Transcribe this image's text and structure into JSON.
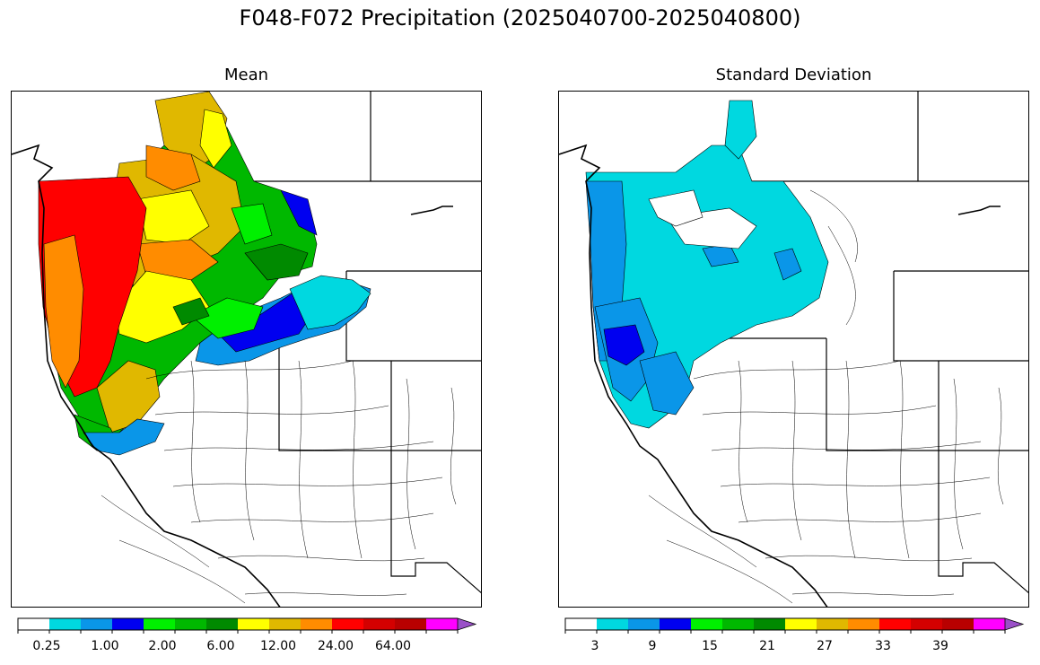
{
  "title": "F048-F072 Precipitation (2025040700-2025040800)",
  "panels": {
    "mean": {
      "title": "Mean",
      "colorbar": {
        "colors": [
          "#ffffff",
          "#00d8e0",
          "#0a96e8",
          "#0000f0",
          "#00f000",
          "#00b800",
          "#008a00",
          "#ffff00",
          "#e0b800",
          "#ff8c00",
          "#ff0000",
          "#d40000",
          "#b80000",
          "#ff00ff",
          "#9a50c8"
        ],
        "tick_labels": [
          "0.25",
          "1.00",
          "2.00",
          "6.00",
          "12.00",
          "24.00",
          "64.00"
        ]
      }
    },
    "stddev": {
      "title": "Standard Deviation",
      "colorbar": {
        "colors": [
          "#ffffff",
          "#00d8e0",
          "#0a96e8",
          "#0000f0",
          "#00f000",
          "#00b800",
          "#008a00",
          "#ffff00",
          "#e0b800",
          "#ff8c00",
          "#ff0000",
          "#d40000",
          "#b80000",
          "#ff00ff",
          "#9a50c8"
        ],
        "tick_labels": [
          "3",
          "9",
          "15",
          "21",
          "27",
          "33",
          "39"
        ]
      }
    }
  }
}
